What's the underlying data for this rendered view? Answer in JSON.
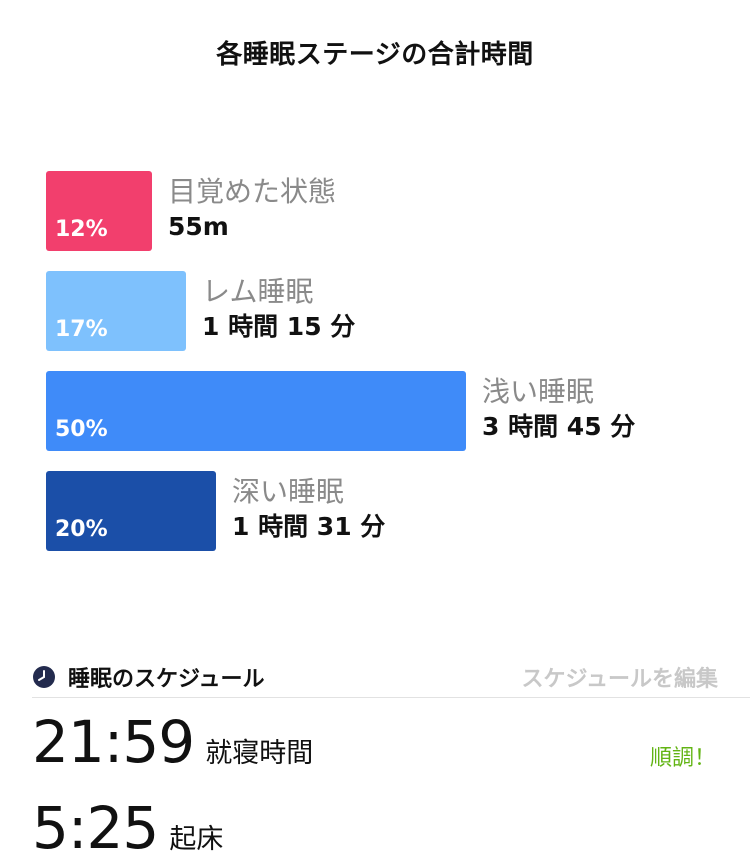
{
  "header": {
    "title": "各睡眠ステージの合計時間"
  },
  "stages": [
    {
      "name": "目覚めた状態",
      "duration": "55m",
      "percent": "12%",
      "share": 0.12,
      "color": "#f23f6d"
    },
    {
      "name": "レム睡眠",
      "duration": "1 時間 15 分",
      "percent": "17%",
      "share": 0.17,
      "color": "#7ec1fd"
    },
    {
      "name": "浅い睡眠",
      "duration": "3 時間 45 分",
      "percent": "50%",
      "share": 0.5,
      "color": "#3f8bf9"
    },
    {
      "name": "深い睡眠",
      "duration": "1 時間 31 分",
      "percent": "20%",
      "share": 0.2,
      "color": "#1b4fa8"
    }
  ],
  "schedule": {
    "title": "睡眠のスケジュール",
    "edit_label": "スケジュールを編集",
    "bedtime": {
      "time": "21:59",
      "label": "就寝時間"
    },
    "wake": {
      "time": "5:25",
      "label": "起床"
    },
    "status": "順調！",
    "status_color": "#62b414",
    "icon": "clock-icon"
  }
}
